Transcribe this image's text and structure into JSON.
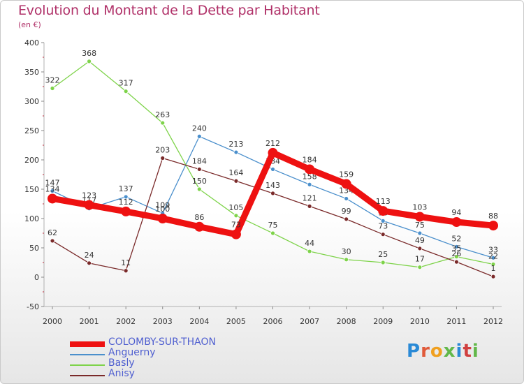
{
  "title": "Evolution du Montant de la Dette par Habitant",
  "subtitle": "(en €)",
  "logo": {
    "text": "Proxiti",
    "colors": [
      "#2a8ad6",
      "#e05a3a",
      "#f0a020",
      "#62b84a",
      "#2a8ad6",
      "#d04040",
      "#62b84a"
    ]
  },
  "chart_data": {
    "type": "line",
    "title": "Evolution du Montant de la Dette par Habitant",
    "ylabel": "(en €)",
    "xlabel": "",
    "categories": [
      "2000",
      "2001",
      "2002",
      "2003",
      "2004",
      "2005",
      "2006",
      "2007",
      "2008",
      "2009",
      "2010",
      "2011",
      "2012"
    ],
    "ylim": [
      -50,
      400
    ],
    "yticks": [
      -50,
      0,
      50,
      100,
      150,
      200,
      250,
      300,
      350,
      400
    ],
    "grid": false,
    "legend_position": "bottom-left",
    "series": [
      {
        "name": "COLOMBY-SUR-THAON",
        "color": "#ee1111",
        "emphasis": true,
        "values": [
          134,
          123,
          112,
          100,
          86,
          73,
          212,
          184,
          159,
          113,
          103,
          94,
          88
        ]
      },
      {
        "name": "Anguerny",
        "color": "#4a8fcc",
        "values": [
          147,
          117,
          137,
          109,
          240,
          213,
          184,
          158,
          134,
          96,
          75,
          52,
          33
        ]
      },
      {
        "name": "Basly",
        "color": "#7ed34a",
        "values": [
          322,
          368,
          317,
          263,
          150,
          105,
          75,
          44,
          30,
          25,
          17,
          35,
          22
        ]
      },
      {
        "name": "Anisy",
        "color": "#7a2a2a",
        "values": [
          62,
          24,
          11,
          203,
          184,
          164,
          143,
          121,
          99,
          73,
          49,
          26,
          1
        ]
      }
    ]
  }
}
